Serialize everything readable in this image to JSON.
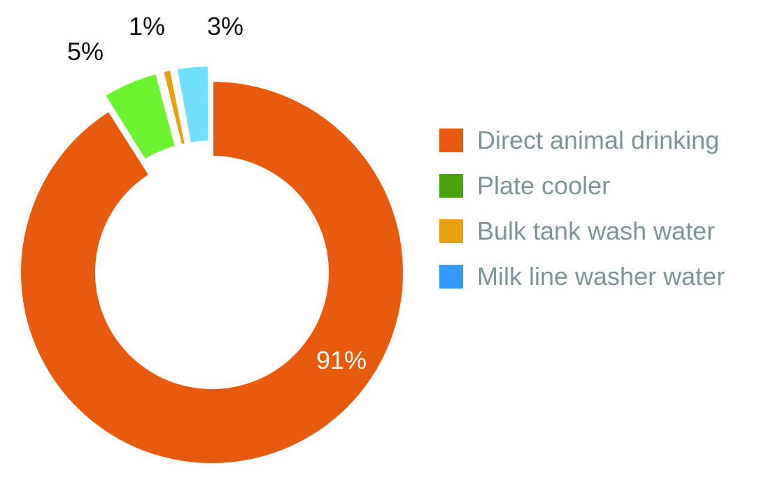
{
  "chart_data": {
    "type": "pie",
    "style": "donut",
    "title": "",
    "slices": [
      {
        "label": "Direct animal drinking",
        "value": 91,
        "value_label": "91%",
        "color": "#e85b0f",
        "swatch_color": "#e85b0f",
        "exploded": false
      },
      {
        "label": "Plate cooler",
        "value": 5,
        "value_label": "5%",
        "color": "#6cf52e",
        "swatch_color": "#4ba30a",
        "exploded": true
      },
      {
        "label": "Bulk tank wash water",
        "value": 1,
        "value_label": "1%",
        "color": "#e8a00f",
        "swatch_color": "#e8a00f",
        "exploded": true
      },
      {
        "label": "Milk line washer water",
        "value": 3,
        "value_label": "3%",
        "color": "#6fe0fb",
        "swatch_color": "#3399ff",
        "exploded": true
      }
    ],
    "legend_position": "right"
  }
}
